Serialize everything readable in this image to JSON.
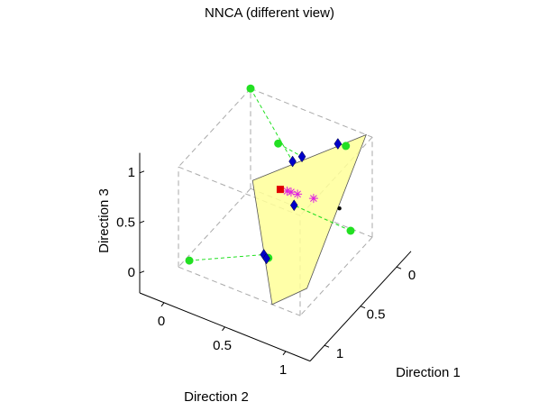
{
  "chart_data": {
    "type": "scatter3d",
    "title": "NNCA (different view)",
    "xlabel": "Direction 1",
    "ylabel": "Direction 2",
    "zlabel": "Direction 3",
    "xlim": [
      -0.2,
      1.2
    ],
    "ylim": [
      -0.2,
      1.2
    ],
    "zlim": [
      -0.2,
      1.2
    ],
    "xticks": [
      0,
      0.5,
      1
    ],
    "yticks": [
      0,
      0.5,
      1
    ],
    "zticks": [
      0,
      0.5,
      1
    ],
    "box": [
      [
        0,
        1
      ],
      [
        0,
        1
      ],
      [
        0,
        1
      ]
    ],
    "surface": {
      "color": "#ffff99",
      "x": [
        0.85,
        0,
        0.72,
        1
      ],
      "y": [
        0.52,
        0.95,
        0.89,
        0.77
      ],
      "z": [
        1,
        1,
        0,
        0
      ]
    },
    "series": [
      {
        "marker": "circle",
        "color": "#22e022",
        "x": [
          0,
          0.41,
          0.18,
          0.3,
          0.9,
          0.58
        ],
        "y": [
          0,
          0.47,
          0.89,
          1,
          0.03,
          0.49
        ],
        "z": [
          1,
          1,
          1,
          0.3,
          0,
          0
        ]
      },
      {
        "marker": "diamond",
        "color": "#0000c8",
        "x": [
          0.43,
          0.35,
          0.19,
          0.46,
          0.66,
          0.64
        ],
        "y": [
          0.6,
          0.63,
          0.83,
          0.63,
          0.5,
          0.51
        ],
        "z": [
          0.9,
          0.9,
          1,
          0.5,
          0.1,
          0.05
        ]
      },
      {
        "marker": "star",
        "color": "#e020e0",
        "x": [
          0.54,
          0.535,
          0.53,
          0.51
        ],
        "y": [
          0.62,
          0.65,
          0.7,
          0.82
        ],
        "z": [
          0.7,
          0.7,
          0.7,
          0.7
        ]
      },
      {
        "marker": "square",
        "color": "#e00000",
        "x": [
          0.55
        ],
        "y": [
          0.57
        ],
        "z": [
          0.7
        ]
      },
      {
        "marker": "dot",
        "color": "#000000",
        "x": [
          0.32
        ],
        "y": [
          0.92
        ],
        "z": [
          0.5
        ]
      }
    ]
  }
}
